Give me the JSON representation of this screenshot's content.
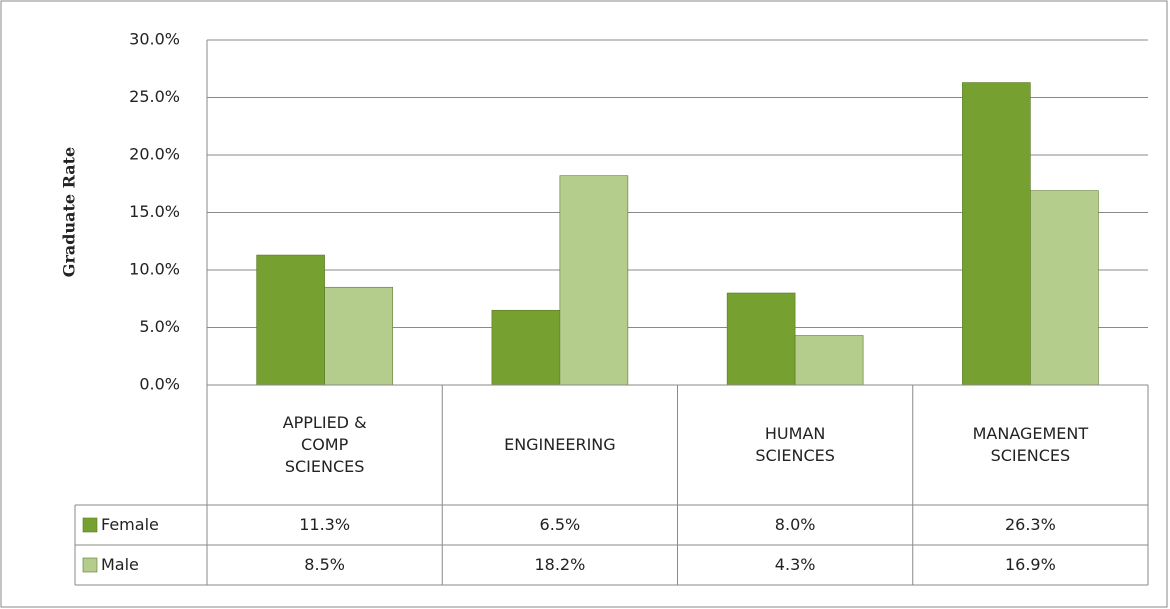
{
  "chart_data": {
    "type": "bar",
    "ylabel": "Graduate Rate",
    "categories": [
      "APPLIED & COMP SCIENCES",
      "ENGINEERING",
      "HUMAN SCIENCES",
      "MANAGEMENT SCIENCES"
    ],
    "series": [
      {
        "name": "Female",
        "color": "#76a030",
        "values": [
          11.3,
          6.5,
          8.0,
          26.3
        ],
        "value_labels": [
          "11.3%",
          "6.5%",
          "8.0%",
          "26.3%"
        ]
      },
      {
        "name": "Male",
        "color": "#b4cd8c",
        "values": [
          8.5,
          18.2,
          4.3,
          16.9
        ],
        "value_labels": [
          "8.5%",
          "18.2%",
          "4.3%",
          "16.9%"
        ]
      }
    ],
    "ylim": [
      0,
      30
    ],
    "yticks": [
      {
        "value": 0,
        "label": "0.0%"
      },
      {
        "value": 5,
        "label": "5.0%"
      },
      {
        "value": 10,
        "label": "10.0%"
      },
      {
        "value": 15,
        "label": "15.0%"
      },
      {
        "value": 20,
        "label": "20.0%"
      },
      {
        "value": 25,
        "label": "25.0%"
      },
      {
        "value": 30,
        "label": "30.0%"
      }
    ],
    "grid": true
  }
}
